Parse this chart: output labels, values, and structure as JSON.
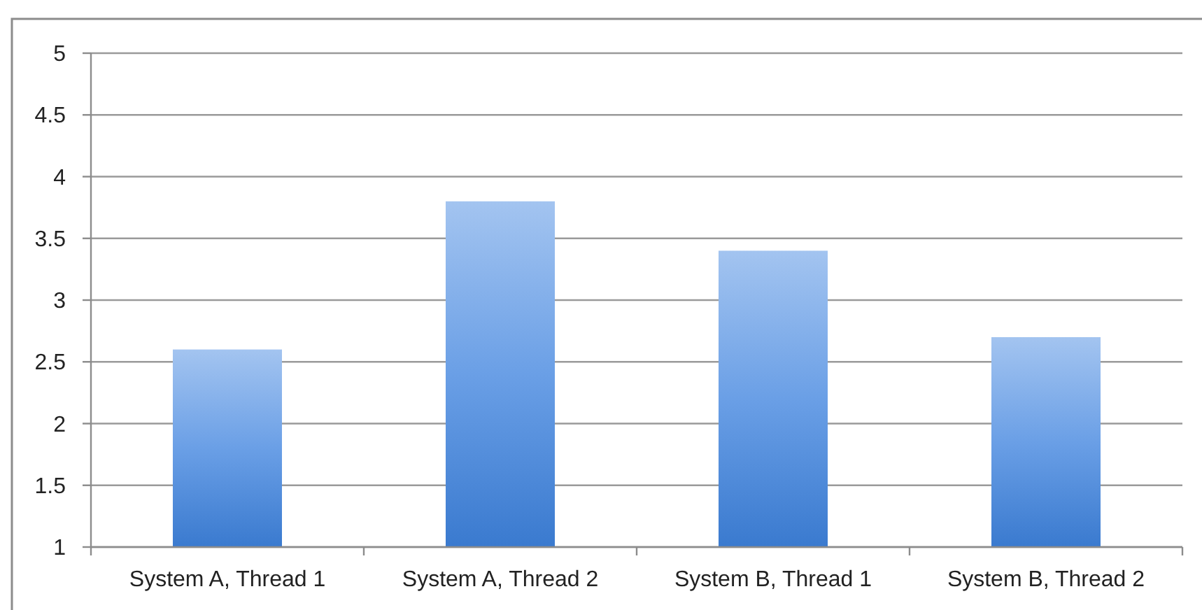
{
  "chart_data": {
    "type": "bar",
    "categories": [
      "System A, Thread 1",
      "System A, Thread 2",
      "System B, Thread 1",
      "System B, Thread 2"
    ],
    "values": [
      2.6,
      3.8,
      3.4,
      2.7
    ],
    "color": "#6a9fe6",
    "ylim": [
      1,
      5
    ],
    "yticks": [
      1,
      1.5,
      2,
      2.5,
      3,
      3.5,
      4,
      4.5,
      5
    ],
    "grid": "y"
  }
}
